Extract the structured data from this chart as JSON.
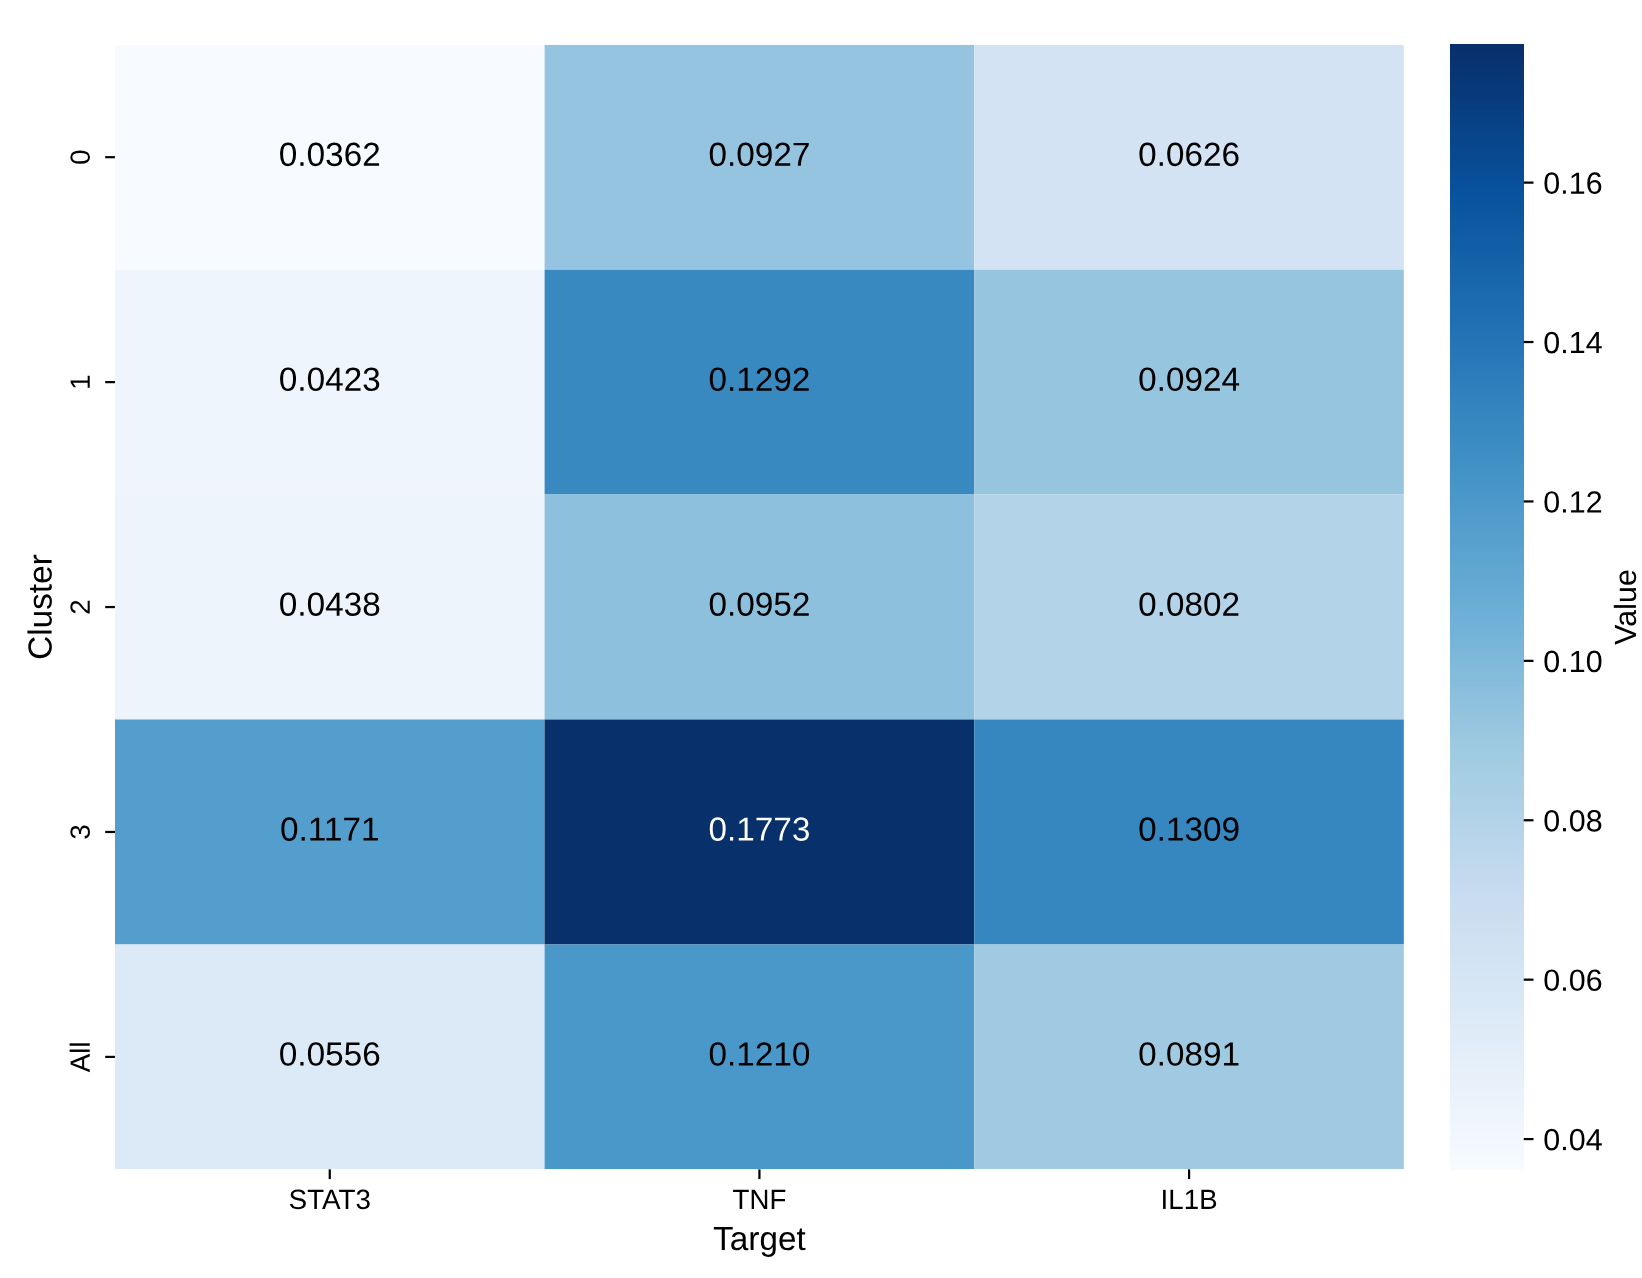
{
  "chart_data": {
    "type": "heatmap",
    "xlabel": "Target",
    "ylabel": "Cluster",
    "clabel": "Value",
    "categories": [
      "STAT3",
      "TNF",
      "IL1B"
    ],
    "y_categories": [
      "0",
      "1",
      "2",
      "3",
      "All"
    ],
    "cells": [
      [
        0.0362,
        0.0927,
        0.0626
      ],
      [
        0.0423,
        0.1292,
        0.0924
      ],
      [
        0.0438,
        0.0952,
        0.0802
      ],
      [
        0.1171,
        0.1773,
        0.1309
      ],
      [
        0.0556,
        0.121,
        0.0891
      ]
    ],
    "cell_labels": [
      [
        "0.0362",
        "0.0927",
        "0.0626"
      ],
      [
        "0.0423",
        "0.1292",
        "0.0924"
      ],
      [
        "0.0438",
        "0.0952",
        "0.0802"
      ],
      [
        "0.1171",
        "0.1773",
        "0.1309"
      ],
      [
        "0.0556",
        "0.1210",
        "0.0891"
      ]
    ],
    "clim": [
      0.0362,
      0.1773
    ],
    "cticks": [
      {
        "value": 0.04,
        "label": "0.04"
      },
      {
        "value": 0.06,
        "label": "0.06"
      },
      {
        "value": 0.08,
        "label": "0.08"
      },
      {
        "value": 0.1,
        "label": "0.10"
      },
      {
        "value": 0.12,
        "label": "0.12"
      },
      {
        "value": 0.14,
        "label": "0.14"
      },
      {
        "value": 0.16,
        "label": "0.16"
      }
    ]
  }
}
